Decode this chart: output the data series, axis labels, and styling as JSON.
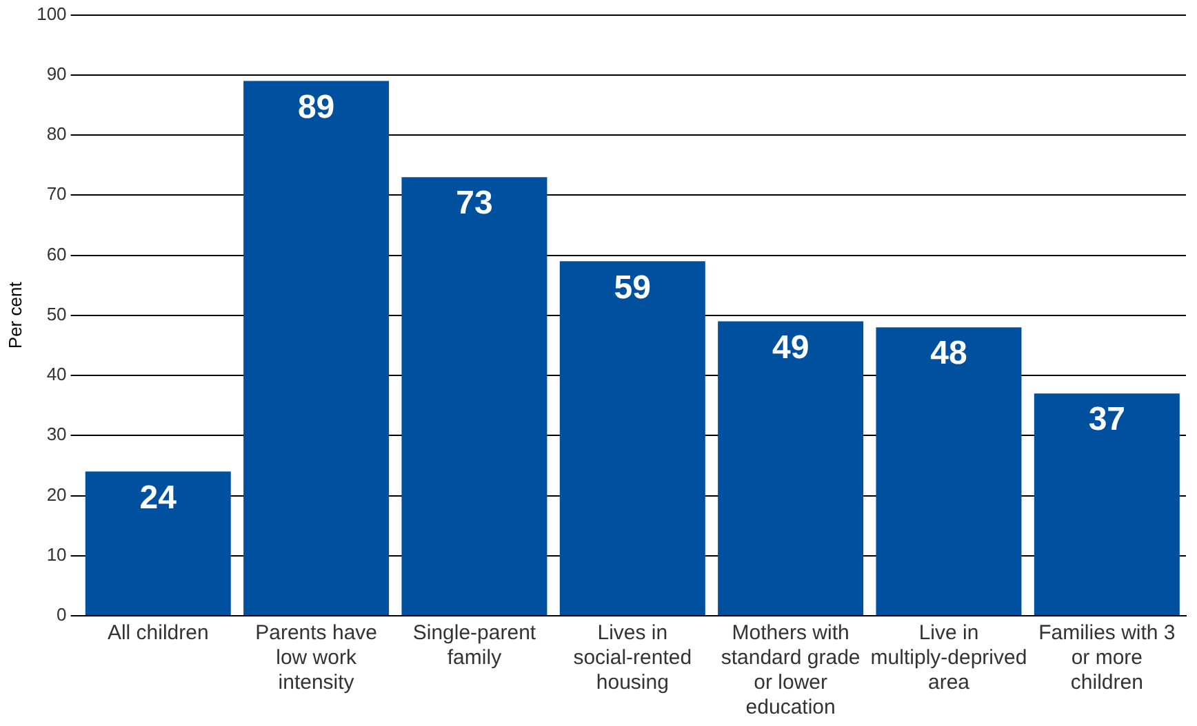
{
  "chart_data": {
    "type": "bar",
    "ylabel": "Per cent",
    "categories": [
      "All children",
      "Parents have low work intensity",
      "Single-parent family",
      "Lives in social-rented housing",
      "Mothers with standard grade or lower education",
      "Live in multiply-deprived area",
      "Families with 3 or more children"
    ],
    "values": [
      24,
      89,
      73,
      59,
      49,
      48,
      37
    ],
    "color": "#0050a0",
    "ylim": [
      0,
      100
    ],
    "yticks": [
      0,
      10,
      20,
      30,
      40,
      50,
      60,
      70,
      80,
      90,
      100
    ],
    "grid": "y",
    "data_labels": true,
    "legend": false
  }
}
